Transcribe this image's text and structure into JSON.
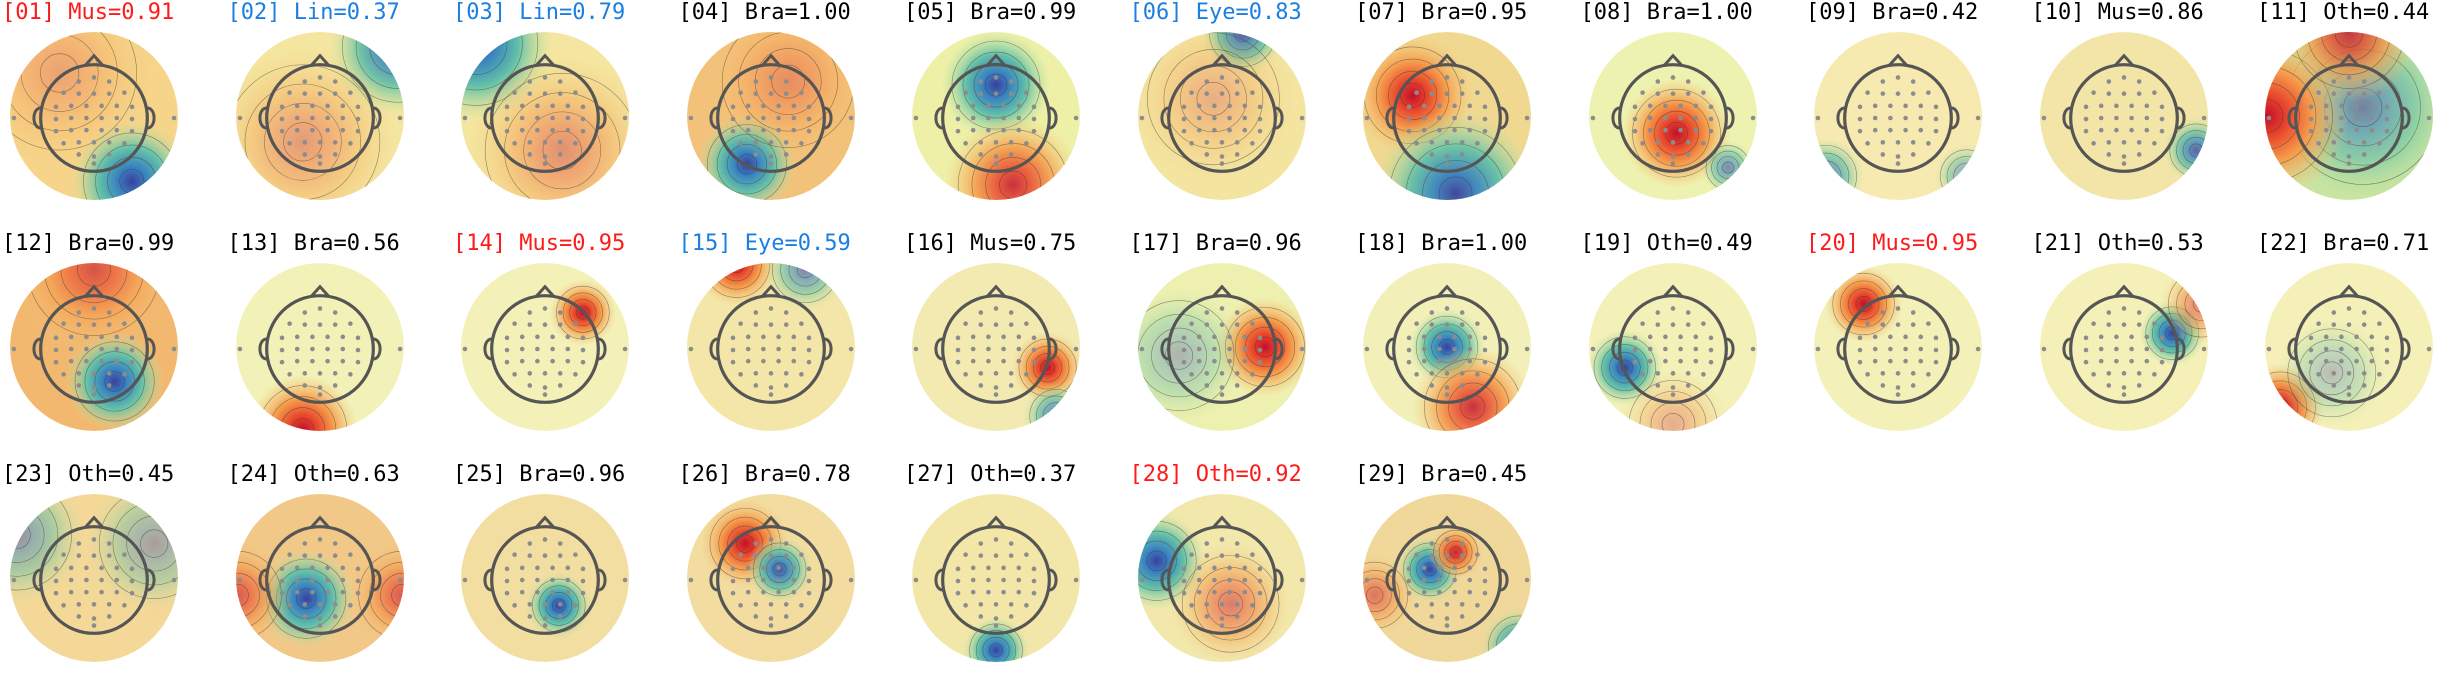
{
  "colors": {
    "default": "#000000",
    "Mus": "#ff1a1a",
    "Eye": "#1a7fe0",
    "Lin": "#1a7fe0",
    "Oth_flagged": "#ff1a1a",
    "sensor": "#8c8c8c",
    "head": "#555555"
  },
  "components": [
    {
      "index": "01",
      "label": "Mus",
      "prob": "0.91",
      "text": "[01] Mus=0.91",
      "color": "#ff1a1a",
      "bg": "#f6d48a",
      "blobs": [
        {
          "fx": 0.72,
          "fy": 0.88,
          "r": 0.22,
          "type": "neg",
          "strength": 1.0
        },
        {
          "fx": 0.3,
          "fy": 0.25,
          "r": 0.35,
          "type": "pos",
          "strength": 0.25
        }
      ]
    },
    {
      "index": "02",
      "label": "Lin",
      "prob": "0.37",
      "text": "[02] Lin=0.37",
      "color": "#1a7fe0",
      "bg": "#f4e6a0",
      "blobs": [
        {
          "fx": 0.95,
          "fy": 0.1,
          "r": 0.25,
          "type": "neg",
          "strength": 0.9
        },
        {
          "fx": 0.4,
          "fy": 0.65,
          "r": 0.35,
          "type": "pos",
          "strength": 0.35
        }
      ]
    },
    {
      "index": "03",
      "label": "Lin",
      "prob": "0.79",
      "text": "[03] Lin=0.79",
      "color": "#1a7fe0",
      "bg": "#f4e6a0",
      "blobs": [
        {
          "fx": 0.1,
          "fy": 0.08,
          "r": 0.28,
          "type": "neg",
          "strength": 1.0
        },
        {
          "fx": 0.6,
          "fy": 0.7,
          "r": 0.35,
          "type": "pos",
          "strength": 0.4
        }
      ]
    },
    {
      "index": "04",
      "label": "Bra",
      "prob": "1.00",
      "text": "[04] Bra=1.00",
      "color": "#000000",
      "bg": "#f3c27a",
      "blobs": [
        {
          "fx": 0.36,
          "fy": 0.78,
          "r": 0.18,
          "type": "neg",
          "strength": 1.0
        },
        {
          "fx": 0.6,
          "fy": 0.3,
          "r": 0.3,
          "type": "pos",
          "strength": 0.3
        }
      ]
    },
    {
      "index": "05",
      "label": "Bra",
      "prob": "0.99",
      "text": "[05] Bra=0.99",
      "color": "#000000",
      "bg": "#eef0a8",
      "blobs": [
        {
          "fx": 0.5,
          "fy": 0.32,
          "r": 0.2,
          "type": "neg",
          "strength": 1.0
        },
        {
          "fx": 0.6,
          "fy": 0.9,
          "r": 0.25,
          "type": "pos",
          "strength": 0.85
        }
      ]
    },
    {
      "index": "06",
      "label": "Eye",
      "prob": "0.83",
      "text": "[06] Eye=0.83",
      "color": "#1a7fe0",
      "bg": "#f3e4a0",
      "blobs": [
        {
          "fx": 0.62,
          "fy": 0.02,
          "r": 0.15,
          "type": "neg",
          "strength": 0.9
        },
        {
          "fx": 0.45,
          "fy": 0.4,
          "r": 0.3,
          "type": "pos",
          "strength": 0.25
        }
      ]
    },
    {
      "index": "07",
      "label": "Bra",
      "prob": "0.95",
      "text": "[07] Bra=0.95",
      "color": "#000000",
      "bg": "#f0d890",
      "blobs": [
        {
          "fx": 0.3,
          "fy": 0.38,
          "r": 0.22,
          "type": "pos",
          "strength": 1.0
        },
        {
          "fx": 0.55,
          "fy": 0.95,
          "r": 0.3,
          "type": "neg",
          "strength": 0.95
        }
      ]
    },
    {
      "index": "08",
      "label": "Bra",
      "prob": "1.00",
      "text": "[08] Bra=1.00",
      "color": "#000000",
      "bg": "#eef2b0",
      "blobs": [
        {
          "fx": 0.52,
          "fy": 0.6,
          "r": 0.2,
          "type": "pos",
          "strength": 1.0
        },
        {
          "fx": 0.82,
          "fy": 0.8,
          "r": 0.1,
          "type": "neg",
          "strength": 0.6
        }
      ]
    },
    {
      "index": "09",
      "label": "Bra",
      "prob": "0.42",
      "text": "[09] Bra=0.42",
      "color": "#000000",
      "bg": "#f6eab0",
      "blobs": [
        {
          "fx": 0.08,
          "fy": 0.85,
          "r": 0.14,
          "type": "neg",
          "strength": 0.7
        },
        {
          "fx": 0.9,
          "fy": 0.85,
          "r": 0.12,
          "type": "neg",
          "strength": 0.5
        }
      ]
    },
    {
      "index": "10",
      "label": "Mus",
      "prob": "0.86",
      "text": "[10] Mus=0.86",
      "color": "#000000",
      "bg": "#f3e4a8",
      "blobs": [
        {
          "fx": 0.92,
          "fy": 0.7,
          "r": 0.12,
          "type": "neg",
          "strength": 0.8
        }
      ]
    },
    {
      "index": "11",
      "label": "Oth",
      "prob": "0.44",
      "text": "[11] Oth=0.44",
      "color": "#000000",
      "bg": "#c9e4a0",
      "blobs": [
        {
          "fx": 0.58,
          "fy": 0.45,
          "r": 0.35,
          "type": "neg",
          "strength": 0.6
        },
        {
          "fx": 0.02,
          "fy": 0.5,
          "r": 0.3,
          "type": "pos",
          "strength": 1.0
        },
        {
          "fx": 0.5,
          "fy": 0.02,
          "r": 0.25,
          "type": "pos",
          "strength": 0.8
        }
      ]
    },
    {
      "index": "12",
      "label": "Bra",
      "prob": "0.99",
      "text": "[12] Bra=0.99",
      "color": "#000000",
      "bg": "#f2b870",
      "blobs": [
        {
          "fx": 0.62,
          "fy": 0.7,
          "r": 0.18,
          "type": "neg",
          "strength": 1.0
        },
        {
          "fx": 0.5,
          "fy": 0.05,
          "r": 0.3,
          "type": "pos",
          "strength": 0.6
        }
      ]
    },
    {
      "index": "13",
      "label": "Bra",
      "prob": "0.56",
      "text": "[13] Bra=0.56",
      "color": "#000000",
      "bg": "#f2f2b8",
      "blobs": [
        {
          "fx": 0.4,
          "fy": 0.98,
          "r": 0.2,
          "type": "pos",
          "strength": 1.0
        }
      ]
    },
    {
      "index": "14",
      "label": "Mus",
      "prob": "0.95",
      "text": "[14] Mus=0.95",
      "color": "#ff1a1a",
      "bg": "#f3f0b8",
      "blobs": [
        {
          "fx": 0.72,
          "fy": 0.3,
          "r": 0.12,
          "type": "pos",
          "strength": 1.0
        }
      ]
    },
    {
      "index": "15",
      "label": "Eye",
      "prob": "0.59",
      "text": "[15] Eye=0.59",
      "color": "#1a7fe0",
      "bg": "#f3e6a8",
      "blobs": [
        {
          "fx": 0.3,
          "fy": 0.02,
          "r": 0.15,
          "type": "pos",
          "strength": 1.0
        },
        {
          "fx": 0.7,
          "fy": 0.05,
          "r": 0.15,
          "type": "neg",
          "strength": 0.6
        }
      ]
    },
    {
      "index": "16",
      "label": "Mus",
      "prob": "0.75",
      "text": "[16] Mus=0.75",
      "color": "#000000",
      "bg": "#f2eab0",
      "blobs": [
        {
          "fx": 0.8,
          "fy": 0.62,
          "r": 0.13,
          "type": "pos",
          "strength": 1.0
        },
        {
          "fx": 0.85,
          "fy": 0.9,
          "r": 0.12,
          "type": "neg",
          "strength": 0.7
        }
      ]
    },
    {
      "index": "17",
      "label": "Bra",
      "prob": "0.96",
      "text": "[17] Bra=0.96",
      "color": "#000000",
      "bg": "#eef0b0",
      "blobs": [
        {
          "fx": 0.75,
          "fy": 0.5,
          "r": 0.18,
          "type": "pos",
          "strength": 1.0
        },
        {
          "fx": 0.25,
          "fy": 0.55,
          "r": 0.25,
          "type": "neg",
          "strength": 0.35
        }
      ]
    },
    {
      "index": "18",
      "label": "Bra",
      "prob": "1.00",
      "text": "[18] Bra=1.00",
      "color": "#000000",
      "bg": "#f2f0b8",
      "blobs": [
        {
          "fx": 0.5,
          "fy": 0.5,
          "r": 0.14,
          "type": "neg",
          "strength": 1.0
        },
        {
          "fx": 0.65,
          "fy": 0.85,
          "r": 0.22,
          "type": "pos",
          "strength": 0.85
        }
      ]
    },
    {
      "index": "19",
      "label": "Oth",
      "prob": "0.49",
      "text": "[19] Oth=0.49",
      "color": "#000000",
      "bg": "#f3f0b8",
      "blobs": [
        {
          "fx": 0.22,
          "fy": 0.62,
          "r": 0.14,
          "type": "neg",
          "strength": 1.0
        },
        {
          "fx": 0.5,
          "fy": 0.95,
          "r": 0.2,
          "type": "pos",
          "strength": 0.3
        }
      ]
    },
    {
      "index": "20",
      "label": "Mus",
      "prob": "0.95",
      "text": "[20] Mus=0.95",
      "color": "#ff1a1a",
      "bg": "#f3f0b8",
      "blobs": [
        {
          "fx": 0.3,
          "fy": 0.25,
          "r": 0.14,
          "type": "pos",
          "strength": 1.0
        }
      ]
    },
    {
      "index": "21",
      "label": "Oth",
      "prob": "0.53",
      "text": "[21] Oth=0.53",
      "color": "#000000",
      "bg": "#f4f0b8",
      "blobs": [
        {
          "fx": 0.78,
          "fy": 0.42,
          "r": 0.12,
          "type": "neg",
          "strength": 1.0
        },
        {
          "fx": 0.95,
          "fy": 0.25,
          "r": 0.15,
          "type": "pos",
          "strength": 0.5
        }
      ]
    },
    {
      "index": "22",
      "label": "Bra",
      "prob": "0.71",
      "text": "[22] Bra=0.71",
      "color": "#000000",
      "bg": "#f4f0b8",
      "blobs": [
        {
          "fx": 0.1,
          "fy": 0.85,
          "r": 0.16,
          "type": "pos",
          "strength": 1.0
        },
        {
          "fx": 0.4,
          "fy": 0.65,
          "r": 0.2,
          "type": "neg",
          "strength": 0.3
        }
      ]
    },
    {
      "index": "23",
      "label": "Oth",
      "prob": "0.45",
      "text": "[23] Oth=0.45",
      "color": "#000000",
      "bg": "#f4d898",
      "blobs": [
        {
          "fx": 0.05,
          "fy": 0.25,
          "r": 0.25,
          "type": "neg",
          "strength": 0.5
        },
        {
          "fx": 0.85,
          "fy": 0.3,
          "r": 0.25,
          "type": "neg",
          "strength": 0.4
        }
      ]
    },
    {
      "index": "24",
      "label": "Oth",
      "prob": "0.63",
      "text": "[24] Oth=0.63",
      "color": "#000000",
      "bg": "#f2c888",
      "blobs": [
        {
          "fx": 0.42,
          "fy": 0.62,
          "r": 0.18,
          "type": "neg",
          "strength": 1.0
        },
        {
          "fx": 0.02,
          "fy": 0.6,
          "r": 0.2,
          "type": "pos",
          "strength": 0.6
        },
        {
          "fx": 0.98,
          "fy": 0.6,
          "r": 0.2,
          "type": "pos",
          "strength": 0.6
        }
      ]
    },
    {
      "index": "25",
      "label": "Bra",
      "prob": "0.96",
      "text": "[25] Bra=0.96",
      "color": "#000000",
      "bg": "#f2dea0",
      "blobs": [
        {
          "fx": 0.58,
          "fy": 0.66,
          "r": 0.12,
          "type": "neg",
          "strength": 1.0
        }
      ]
    },
    {
      "index": "26",
      "label": "Bra",
      "prob": "0.78",
      "text": "[26] Bra=0.78",
      "color": "#000000",
      "bg": "#f2dca0",
      "blobs": [
        {
          "fx": 0.35,
          "fy": 0.3,
          "r": 0.16,
          "type": "pos",
          "strength": 1.0
        },
        {
          "fx": 0.55,
          "fy": 0.45,
          "r": 0.12,
          "type": "neg",
          "strength": 0.9
        }
      ]
    },
    {
      "index": "27",
      "label": "Oth",
      "prob": "0.37",
      "text": "[27] Oth=0.37",
      "color": "#000000",
      "bg": "#f2e6a8",
      "blobs": [
        {
          "fx": 0.5,
          "fy": 0.92,
          "r": 0.12,
          "type": "neg",
          "strength": 1.0
        }
      ]
    },
    {
      "index": "28",
      "label": "Oth",
      "prob": "0.92",
      "text": "[28] Oth=0.92",
      "color": "#ff1a1a",
      "bg": "#f2e8ac",
      "blobs": [
        {
          "fx": 0.12,
          "fy": 0.4,
          "r": 0.18,
          "type": "neg",
          "strength": 1.0
        },
        {
          "fx": 0.55,
          "fy": 0.65,
          "r": 0.22,
          "type": "pos",
          "strength": 0.5
        }
      ]
    },
    {
      "index": "29",
      "label": "Bra",
      "prob": "0.45",
      "text": "[29] Bra=0.45",
      "color": "#000000",
      "bg": "#f0d89a",
      "blobs": [
        {
          "fx": 0.4,
          "fy": 0.45,
          "r": 0.12,
          "type": "neg",
          "strength": 1.0
        },
        {
          "fx": 0.55,
          "fy": 0.35,
          "r": 0.1,
          "type": "pos",
          "strength": 0.9
        },
        {
          "fx": 0.92,
          "fy": 0.9,
          "r": 0.14,
          "type": "neg",
          "strength": 0.8
        },
        {
          "fx": 0.08,
          "fy": 0.6,
          "r": 0.15,
          "type": "pos",
          "strength": 0.5
        }
      ]
    }
  ]
}
